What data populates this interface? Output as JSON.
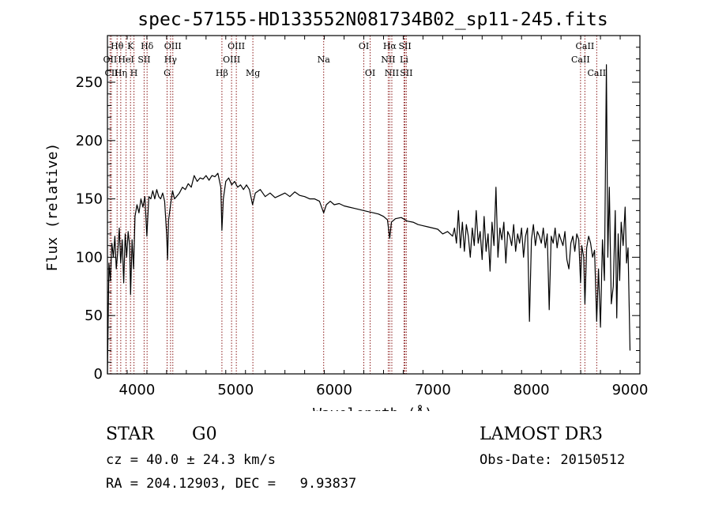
{
  "chart_data": {
    "type": "line",
    "title": "spec-57155-HD133552N081734B02_sp11-245.fits",
    "xlabel": "Wavelength (Å)",
    "ylabel": "Flux (relative)",
    "xlim": [
      3700,
      9100
    ],
    "ylim": [
      0,
      290
    ],
    "xticks": [
      4000,
      5000,
      6000,
      7000,
      8000,
      9000
    ],
    "yticks": [
      0,
      50,
      100,
      150,
      200,
      250
    ],
    "grid": false,
    "line_color": "#000000",
    "marker_color": "#8b1a1a",
    "series": [
      {
        "points": [
          [
            3700,
            0
          ],
          [
            3715,
            95
          ],
          [
            3730,
            80
          ],
          [
            3745,
            112
          ],
          [
            3760,
            100
          ],
          [
            3775,
            118
          ],
          [
            3790,
            90
          ],
          [
            3805,
            105
          ],
          [
            3820,
            125
          ],
          [
            3835,
            95
          ],
          [
            3850,
            115
          ],
          [
            3865,
            78
          ],
          [
            3880,
            120
          ],
          [
            3895,
            100
          ],
          [
            3910,
            122
          ],
          [
            3925,
            110
          ],
          [
            3935,
            68
          ],
          [
            3950,
            115
          ],
          [
            3965,
            90
          ],
          [
            3980,
            135
          ],
          [
            4000,
            145
          ],
          [
            4020,
            138
          ],
          [
            4040,
            150
          ],
          [
            4060,
            143
          ],
          [
            4080,
            152
          ],
          [
            4100,
            118
          ],
          [
            4120,
            152
          ],
          [
            4140,
            150
          ],
          [
            4160,
            157
          ],
          [
            4180,
            150
          ],
          [
            4200,
            158
          ],
          [
            4220,
            152
          ],
          [
            4240,
            150
          ],
          [
            4260,
            155
          ],
          [
            4280,
            148
          ],
          [
            4300,
            120
          ],
          [
            4310,
            98
          ],
          [
            4320,
            132
          ],
          [
            4340,
            145
          ],
          [
            4360,
            157
          ],
          [
            4380,
            150
          ],
          [
            4400,
            152
          ],
          [
            4430,
            155
          ],
          [
            4460,
            160
          ],
          [
            4490,
            158
          ],
          [
            4520,
            163
          ],
          [
            4550,
            160
          ],
          [
            4580,
            170
          ],
          [
            4610,
            165
          ],
          [
            4640,
            168
          ],
          [
            4670,
            167
          ],
          [
            4700,
            170
          ],
          [
            4730,
            166
          ],
          [
            4760,
            170
          ],
          [
            4790,
            169
          ],
          [
            4820,
            172
          ],
          [
            4850,
            160
          ],
          [
            4861,
            123
          ],
          [
            4875,
            150
          ],
          [
            4900,
            165
          ],
          [
            4930,
            168
          ],
          [
            4960,
            162
          ],
          [
            4990,
            165
          ],
          [
            5020,
            160
          ],
          [
            5050,
            162
          ],
          [
            5080,
            158
          ],
          [
            5110,
            162
          ],
          [
            5140,
            158
          ],
          [
            5172,
            145
          ],
          [
            5200,
            155
          ],
          [
            5250,
            158
          ],
          [
            5300,
            152
          ],
          [
            5350,
            155
          ],
          [
            5400,
            151
          ],
          [
            5450,
            153
          ],
          [
            5500,
            155
          ],
          [
            5550,
            152
          ],
          [
            5600,
            156
          ],
          [
            5650,
            153
          ],
          [
            5700,
            152
          ],
          [
            5750,
            150
          ],
          [
            5800,
            150
          ],
          [
            5850,
            148
          ],
          [
            5893,
            138
          ],
          [
            5920,
            145
          ],
          [
            5960,
            148
          ],
          [
            6000,
            145
          ],
          [
            6050,
            146
          ],
          [
            6100,
            144
          ],
          [
            6150,
            143
          ],
          [
            6200,
            142
          ],
          [
            6250,
            141
          ],
          [
            6300,
            140
          ],
          [
            6350,
            139
          ],
          [
            6400,
            138
          ],
          [
            6450,
            137
          ],
          [
            6500,
            135
          ],
          [
            6540,
            132
          ],
          [
            6563,
            116
          ],
          [
            6580,
            130
          ],
          [
            6620,
            133
          ],
          [
            6680,
            134
          ],
          [
            6740,
            131
          ],
          [
            6800,
            130
          ],
          [
            6850,
            128
          ],
          [
            6900,
            127
          ],
          [
            6950,
            126
          ],
          [
            7000,
            125
          ],
          [
            7050,
            124
          ],
          [
            7100,
            120
          ],
          [
            7150,
            122
          ],
          [
            7200,
            118
          ],
          [
            7220,
            125
          ],
          [
            7240,
            112
          ],
          [
            7260,
            140
          ],
          [
            7280,
            108
          ],
          [
            7300,
            130
          ],
          [
            7320,
            105
          ],
          [
            7340,
            128
          ],
          [
            7360,
            118
          ],
          [
            7380,
            100
          ],
          [
            7400,
            125
          ],
          [
            7420,
            110
          ],
          [
            7440,
            140
          ],
          [
            7460,
            112
          ],
          [
            7480,
            122
          ],
          [
            7500,
            98
          ],
          [
            7520,
            135
          ],
          [
            7540,
            105
          ],
          [
            7560,
            120
          ],
          [
            7580,
            88
          ],
          [
            7600,
            130
          ],
          [
            7620,
            110
          ],
          [
            7640,
            160
          ],
          [
            7660,
            100
          ],
          [
            7680,
            125
          ],
          [
            7700,
            115
          ],
          [
            7720,
            130
          ],
          [
            7740,
            95
          ],
          [
            7760,
            122
          ],
          [
            7780,
            118
          ],
          [
            7800,
            110
          ],
          [
            7820,
            128
          ],
          [
            7840,
            105
          ],
          [
            7860,
            120
          ],
          [
            7880,
            112
          ],
          [
            7900,
            125
          ],
          [
            7920,
            100
          ],
          [
            7940,
            118
          ],
          [
            7960,
            125
          ],
          [
            7980,
            45
          ],
          [
            8000,
            115
          ],
          [
            8020,
            128
          ],
          [
            8040,
            110
          ],
          [
            8060,
            122
          ],
          [
            8080,
            118
          ],
          [
            8100,
            112
          ],
          [
            8120,
            125
          ],
          [
            8140,
            108
          ],
          [
            8160,
            120
          ],
          [
            8180,
            55
          ],
          [
            8200,
            118
          ],
          [
            8220,
            112
          ],
          [
            8240,
            125
          ],
          [
            8260,
            108
          ],
          [
            8280,
            120
          ],
          [
            8300,
            115
          ],
          [
            8320,
            110
          ],
          [
            8340,
            122
          ],
          [
            8360,
            98
          ],
          [
            8380,
            90
          ],
          [
            8400,
            112
          ],
          [
            8420,
            118
          ],
          [
            8440,
            105
          ],
          [
            8460,
            120
          ],
          [
            8480,
            115
          ],
          [
            8498,
            78
          ],
          [
            8510,
            110
          ],
          [
            8530,
            100
          ],
          [
            8542,
            60
          ],
          [
            8560,
            108
          ],
          [
            8580,
            118
          ],
          [
            8600,
            112
          ],
          [
            8620,
            100
          ],
          [
            8640,
            106
          ],
          [
            8662,
            45
          ],
          [
            8680,
            90
          ],
          [
            8700,
            40
          ],
          [
            8720,
            115
          ],
          [
            8740,
            80
          ],
          [
            8760,
            265
          ],
          [
            8775,
            100
          ],
          [
            8790,
            160
          ],
          [
            8810,
            60
          ],
          [
            8830,
            75
          ],
          [
            8850,
            140
          ],
          [
            8865,
            48
          ],
          [
            8880,
            120
          ],
          [
            8895,
            80
          ],
          [
            8910,
            130
          ],
          [
            8930,
            110
          ],
          [
            8950,
            143
          ],
          [
            8965,
            95
          ],
          [
            8980,
            108
          ],
          [
            9000,
            20
          ]
        ]
      }
    ],
    "lines": [
      {
        "label": "Hθ",
        "x": 3798,
        "row": 0
      },
      {
        "label": "OII",
        "x": 3727,
        "row": 1
      },
      {
        "label": "CII",
        "x": 3740,
        "row": 2
      },
      {
        "label": "Hη",
        "x": 3835,
        "row": 2
      },
      {
        "label": "HeI",
        "x": 3889,
        "row": 1
      },
      {
        "label": "K",
        "x": 3934,
        "row": 0
      },
      {
        "label": "SII",
        "x": 4072,
        "row": 1
      },
      {
        "label": "H",
        "x": 3969,
        "row": 2
      },
      {
        "label": "Hδ",
        "x": 4102,
        "row": 0
      },
      {
        "label": "OIII",
        "x": 4363,
        "row": 0
      },
      {
        "label": "Hγ",
        "x": 4340,
        "row": 1
      },
      {
        "label": "G",
        "x": 4305,
        "row": 2
      },
      {
        "label": "Hβ",
        "x": 4861,
        "row": 2
      },
      {
        "label": "OIII",
        "x": 5007,
        "row": 0
      },
      {
        "label": "OIII",
        "x": 4959,
        "row": 1
      },
      {
        "label": "Mg",
        "x": 5175,
        "row": 2
      },
      {
        "label": "Na",
        "x": 5893,
        "row": 1
      },
      {
        "label": "OI",
        "x": 6300,
        "row": 0
      },
      {
        "label": "OI",
        "x": 6364,
        "row": 2
      },
      {
        "label": "Hα",
        "x": 6563,
        "row": 0
      },
      {
        "label": "SII",
        "x": 6717,
        "row": 0
      },
      {
        "label": "NII",
        "x": 6548,
        "row": 1
      },
      {
        "label": "Li",
        "x": 6708,
        "row": 1
      },
      {
        "label": "NII",
        "x": 6584,
        "row": 2
      },
      {
        "label": "SII",
        "x": 6731,
        "row": 2
      },
      {
        "label": "CaII",
        "x": 8542,
        "row": 0
      },
      {
        "label": "CaII",
        "x": 8498,
        "row": 1
      },
      {
        "label": "CaII",
        "x": 8662,
        "row": 2
      }
    ]
  },
  "info": {
    "object_class": "STAR",
    "subclass": "G0",
    "survey": "LAMOST DR3",
    "redshift": "cz = 40.0 ± 24.3 km/s",
    "obs_date": "Obs-Date: 20150512",
    "coordinates": "RA = 204.12903, DEC =   9.93837"
  }
}
